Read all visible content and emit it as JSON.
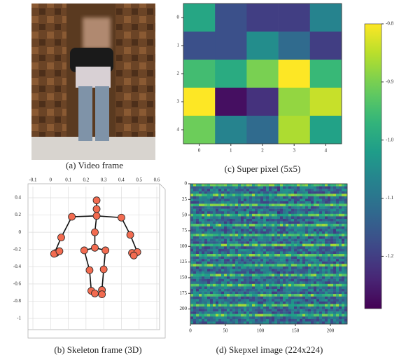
{
  "captions": {
    "a": "(a) Video frame"
  },
  "chart_data": [
    {
      "type": "heatmap",
      "caption": "(c) Super pixel (5x5)",
      "xticks": [
        0,
        1,
        2,
        3,
        4
      ],
      "yticks": [
        0,
        1,
        2,
        3,
        4
      ],
      "values": [
        [
          -1.0,
          -1.17,
          -1.2,
          -1.2,
          -1.07
        ],
        [
          -1.17,
          -1.17,
          -1.05,
          -1.12,
          -1.2
        ],
        [
          -0.95,
          -0.99,
          -0.9,
          -0.8,
          -0.96
        ],
        [
          -0.8,
          -1.27,
          -1.22,
          -0.88,
          -0.84
        ],
        [
          -0.91,
          -1.07,
          -1.12,
          -0.86,
          -1.01
        ]
      ],
      "colorscale": "viridis",
      "zlim": [
        -1.29,
        -0.8
      ],
      "colorbar_ticks": [
        -0.8,
        -0.9,
        {
          "value": -1,
          "label": "-1.0"
        },
        -1.1,
        -1.2
      ]
    },
    {
      "type": "skeleton",
      "caption": "(b) Skeleton frame (3D)",
      "color": "#f26b50",
      "xlim": [
        -0.1,
        0.6
      ],
      "ylim": [
        -1.0,
        0.4
      ],
      "xticks": [
        -0.1,
        {
          "value": 0,
          "label": "0"
        },
        0.1,
        0.2,
        0.3,
        0.4,
        0.5,
        0.6
      ],
      "yticks": [
        0.4,
        0.2,
        {
          "value": 0,
          "label": "0"
        },
        -0.2,
        -0.4,
        -0.6,
        -0.8,
        -1.0
      ],
      "x": [
        0.26,
        0.26,
        0.26,
        0.12,
        0.4,
        0.06,
        0.45,
        0.03,
        0.02,
        0.05,
        0.46,
        0.49,
        0.47,
        0.25,
        0.25,
        0.19,
        0.31,
        0.22,
        0.3,
        0.23,
        0.29,
        0.25,
        0.29
      ],
      "y": [
        0.37,
        0.27,
        0.19,
        0.18,
        0.17,
        -0.06,
        -0.03,
        -0.24,
        -0.25,
        -0.22,
        -0.24,
        -0.23,
        -0.27,
        0.0,
        -0.18,
        -0.21,
        -0.21,
        -0.44,
        -0.43,
        -0.68,
        -0.67,
        -0.71,
        -0.72
      ],
      "bones": [
        [
          0,
          1
        ],
        [
          1,
          2
        ],
        [
          2,
          3
        ],
        [
          2,
          4
        ],
        [
          3,
          5
        ],
        [
          5,
          8
        ],
        [
          4,
          6
        ],
        [
          6,
          11
        ],
        [
          2,
          13
        ],
        [
          13,
          14
        ],
        [
          14,
          15
        ],
        [
          14,
          16
        ],
        [
          15,
          17
        ],
        [
          17,
          19
        ],
        [
          16,
          18
        ],
        [
          18,
          20
        ]
      ]
    },
    {
      "type": "image",
      "caption": "(d) Skepxel image (224x224)",
      "xlim": [
        0,
        224
      ],
      "ylim": [
        0,
        224
      ],
      "xticks": [
        0,
        50,
        100,
        150,
        200
      ],
      "yticks": [
        0,
        25,
        50,
        75,
        100,
        125,
        150,
        175,
        200
      ]
    }
  ]
}
